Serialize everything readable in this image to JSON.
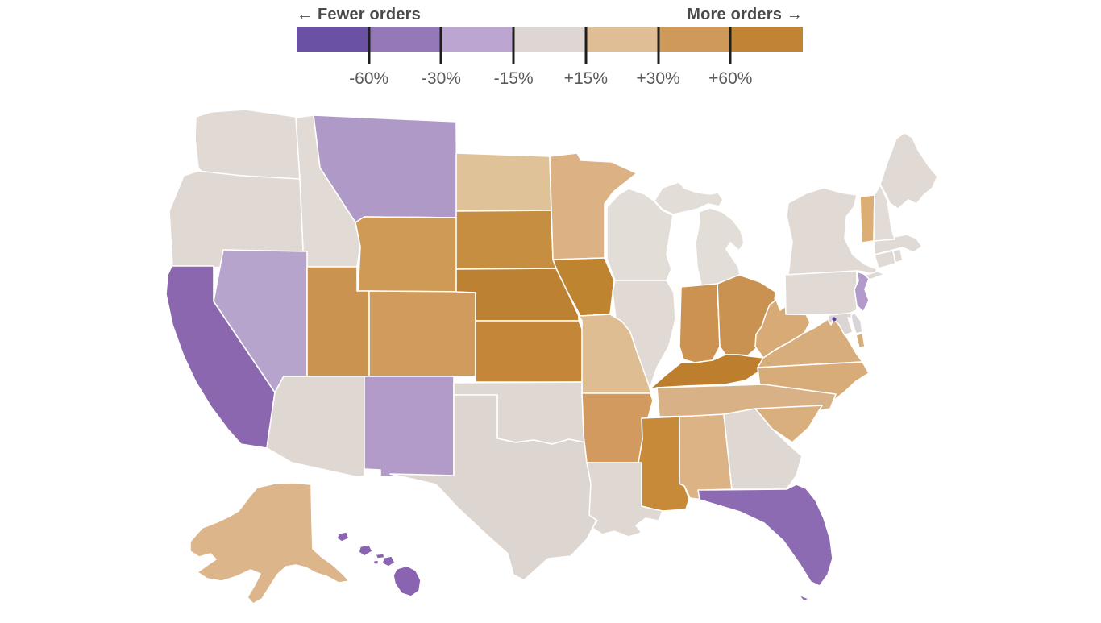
{
  "legend": {
    "left_label": "← Fewer orders",
    "right_label": "More orders →",
    "label_color": "#4a4a4a",
    "tick_color": "#1e1e1e",
    "ticks": [
      "-60%",
      "-30%",
      "-15%",
      "+15%",
      "+30%",
      "+60%"
    ],
    "bins": [
      {
        "range": "below -60%",
        "color": "#6b51a3"
      },
      {
        "range": "-60% to -30%",
        "color": "#9578b8"
      },
      {
        "range": "-30% to -15%",
        "color": "#bca6d1"
      },
      {
        "range": "-15% to +15%",
        "color": "#ddd6d2"
      },
      {
        "range": "+15% to +30%",
        "color": "#dfbe95"
      },
      {
        "range": "+30% to +60%",
        "color": "#cf9a59"
      },
      {
        "range": "above +60%",
        "color": "#c08434"
      }
    ]
  },
  "map": {
    "stroke_color": "#ffffff",
    "states": {
      "WA": {
        "name": "Washington",
        "bin": "-15% to +15%",
        "fill": "#e0d9d4"
      },
      "OR": {
        "name": "Oregon",
        "bin": "-15% to +15%",
        "fill": "#dfd8d3"
      },
      "CA": {
        "name": "California",
        "bin": "-60% to -30%",
        "fill": "#8a67ae"
      },
      "ID": {
        "name": "Idaho",
        "bin": "-15% to +15%",
        "fill": "#e1dad5"
      },
      "NV": {
        "name": "Nevada",
        "bin": "-30% to -15%",
        "fill": "#b7a4cc"
      },
      "MT": {
        "name": "Montana",
        "bin": "-30% to -15%",
        "fill": "#af99c6"
      },
      "WY": {
        "name": "Wyoming",
        "bin": "+30% to +60%",
        "fill": "#cf9a56"
      },
      "UT": {
        "name": "Utah",
        "bin": "+30% to +60%",
        "fill": "#cb9350"
      },
      "CO": {
        "name": "Colorado",
        "bin": "+30% to +60%",
        "fill": "#d09c5e"
      },
      "AZ": {
        "name": "Arizona",
        "bin": "-15% to +15%",
        "fill": "#ded7d2"
      },
      "NM": {
        "name": "New Mexico",
        "bin": "-30% to -15%",
        "fill": "#b29bc9"
      },
      "ND": {
        "name": "North Dakota",
        "bin": "+15% to +30%",
        "fill": "#e0c298"
      },
      "SD": {
        "name": "South Dakota",
        "bin": "above +60%",
        "fill": "#c68e41"
      },
      "NE": {
        "name": "Nebraska",
        "bin": "above +60%",
        "fill": "#bd8132"
      },
      "KS": {
        "name": "Kansas",
        "bin": "above +60%",
        "fill": "#c4873a"
      },
      "OK": {
        "name": "Oklahoma",
        "bin": "-15% to +15%",
        "fill": "#ded7d2"
      },
      "TX": {
        "name": "Texas",
        "bin": "-15% to +15%",
        "fill": "#ddd5d0"
      },
      "MN": {
        "name": "Minnesota",
        "bin": "+15% to +30%",
        "fill": "#dcb183"
      },
      "IA": {
        "name": "Iowa",
        "bin": "above +60%",
        "fill": "#bf8430"
      },
      "MO": {
        "name": "Missouri",
        "bin": "+15% to +30%",
        "fill": "#dfbd92"
      },
      "AR": {
        "name": "Arkansas",
        "bin": "+30% to +60%",
        "fill": "#d29a5f"
      },
      "LA": {
        "name": "Louisiana",
        "bin": "-15% to +15%",
        "fill": "#ded7d2"
      },
      "WI": {
        "name": "Wisconsin",
        "bin": "-15% to +15%",
        "fill": "#e3ddd8"
      },
      "IL": {
        "name": "Illinois",
        "bin": "-15% to +15%",
        "fill": "#e0d9d4"
      },
      "MI": {
        "name": "Michigan",
        "bin": "-15% to +15%",
        "fill": "#e3ddd8"
      },
      "IN": {
        "name": "Indiana",
        "bin": "+30% to +60%",
        "fill": "#cb9251"
      },
      "OH": {
        "name": "Ohio",
        "bin": "+30% to +60%",
        "fill": "#c99250"
      },
      "KY": {
        "name": "Kentucky",
        "bin": "above +60%",
        "fill": "#bd7e2e"
      },
      "TN": {
        "name": "Tennessee",
        "bin": "+15% to +30%",
        "fill": "#d8b286"
      },
      "MS": {
        "name": "Mississippi",
        "bin": "above +60%",
        "fill": "#c68a39"
      },
      "AL": {
        "name": "Alabama",
        "bin": "+15% to +30%",
        "fill": "#dbb384"
      },
      "GA": {
        "name": "Georgia",
        "bin": "-15% to +15%",
        "fill": "#ded7d2"
      },
      "FL": {
        "name": "Florida",
        "bin": "-60% to -30%",
        "fill": "#8d6bb2"
      },
      "SC": {
        "name": "South Carolina",
        "bin": "+15% to +30%",
        "fill": "#d9af7e"
      },
      "NC": {
        "name": "North Carolina",
        "bin": "+15% to +30%",
        "fill": "#d7ac79"
      },
      "VA": {
        "name": "Virginia",
        "bin": "+15% to +30%",
        "fill": "#d8ad7c"
      },
      "WV": {
        "name": "West Virginia",
        "bin": "+15% to +30%",
        "fill": "#d7aa76"
      },
      "MD": {
        "name": "Maryland",
        "bin": "-15% to +15%",
        "fill": "#dcd5d4"
      },
      "DE": {
        "name": "Delaware",
        "bin": "-15% to +15%",
        "fill": "#d9d4d8"
      },
      "DC": {
        "name": "District of Columbia",
        "bin": "below -60%",
        "fill": "#4f42a5"
      },
      "NJ": {
        "name": "New Jersey",
        "bin": "-30% to -15%",
        "fill": "#b29aca"
      },
      "PA": {
        "name": "Pennsylvania",
        "bin": "-15% to +15%",
        "fill": "#e0d9d4"
      },
      "NY": {
        "name": "New York",
        "bin": "-15% to +15%",
        "fill": "#e0d9d4"
      },
      "CT": {
        "name": "Connecticut",
        "bin": "-15% to +15%",
        "fill": "#e0d9d4"
      },
      "RI": {
        "name": "Rhode Island",
        "bin": "-15% to +15%",
        "fill": "#e0d9d4"
      },
      "MA": {
        "name": "Massachusetts",
        "bin": "-15% to +15%",
        "fill": "#e0d9d4"
      },
      "VT": {
        "name": "Vermont",
        "bin": "+15% to +30%",
        "fill": "#dcae76"
      },
      "NH": {
        "name": "New Hampshire",
        "bin": "-15% to +15%",
        "fill": "#e2dbd6"
      },
      "ME": {
        "name": "Maine",
        "bin": "-15% to +15%",
        "fill": "#e0d9d4"
      },
      "AK": {
        "name": "Alaska",
        "bin": "+15% to +30%",
        "fill": "#dcb68a"
      },
      "HI": {
        "name": "Hawaii",
        "bin": "-60% to -30%",
        "fill": "#8a63b1"
      }
    }
  }
}
